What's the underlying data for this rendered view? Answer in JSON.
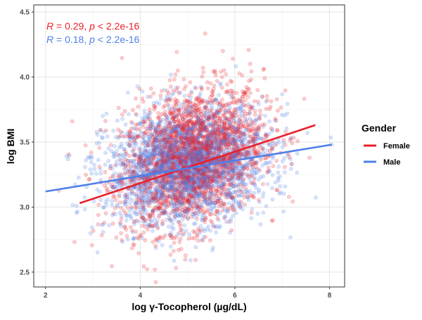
{
  "chart_data": {
    "type": "scatter",
    "title": "",
    "xlabel": "log γ-Tocopherol (µg/dL)",
    "ylabel": "log BMI",
    "xlim": [
      1.75,
      8.32
    ],
    "ylim": [
      2.386,
      4.554
    ],
    "x_ticks": [
      {
        "value": 2,
        "label": "2"
      },
      {
        "value": 4,
        "label": "4"
      },
      {
        "value": 6,
        "label": "6"
      },
      {
        "value": 8,
        "label": "8"
      }
    ],
    "y_ticks": [
      {
        "value": 2.5,
        "label": "2.5"
      },
      {
        "value": 3.0,
        "label": "3.0"
      },
      {
        "value": 3.5,
        "label": "3.5"
      },
      {
        "value": 4.0,
        "label": "4.0"
      },
      {
        "value": 4.5,
        "label": "4.5"
      }
    ],
    "grid": true,
    "legend": {
      "title": "Gender",
      "placement": "right",
      "entries": [
        "Female",
        "Male"
      ]
    },
    "series": [
      {
        "name": "Female",
        "color": "#E8202A",
        "point_cloud": {
          "n": 2500,
          "x_mean": 5.1,
          "x_sd": 0.75,
          "y_mean": 3.38,
          "y_sd": 0.27,
          "corr": 0.29
        },
        "regression": {
          "x": [
            2.72,
            7.7
          ],
          "y": [
            3.03,
            3.63
          ]
        },
        "annotation": {
          "r_symbol": "R",
          "r_text": " = 0.29, ",
          "p_symbol": "p",
          "p_text": " < 2.2e-16"
        }
      },
      {
        "name": "Male",
        "color": "#4F7FE8",
        "point_cloud": {
          "n": 2500,
          "x_mean": 5.0,
          "x_sd": 0.85,
          "y_mean": 3.32,
          "y_sd": 0.22,
          "corr": 0.18
        },
        "regression": {
          "x": [
            2.0,
            8.05
          ],
          "y": [
            3.12,
            3.48
          ]
        },
        "annotation": {
          "r_symbol": "R",
          "r_text": " = 0.18, ",
          "p_symbol": "p",
          "p_text": " < 2.2e-16"
        }
      }
    ]
  }
}
